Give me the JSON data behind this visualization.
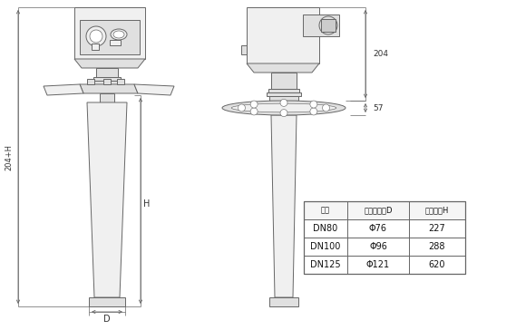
{
  "background_color": "#ffffff",
  "line_color": "#666666",
  "fill_light": "#f0f0f0",
  "fill_mid": "#e0e0e0",
  "fill_dark": "#cccccc",
  "table_headers": [
    "法兰",
    "测量口直径D",
    "测量高度H"
  ],
  "table_rows": [
    [
      "DN80",
      "Φ76",
      "227"
    ],
    [
      "DN100",
      "Φ96",
      "288"
    ],
    [
      "DN125",
      "Φ121",
      "620"
    ]
  ],
  "dim_label_204": "204",
  "dim_label_57": "57",
  "dim_label_H": "H",
  "dim_label_204H": "204+H",
  "dim_label_D": "D"
}
